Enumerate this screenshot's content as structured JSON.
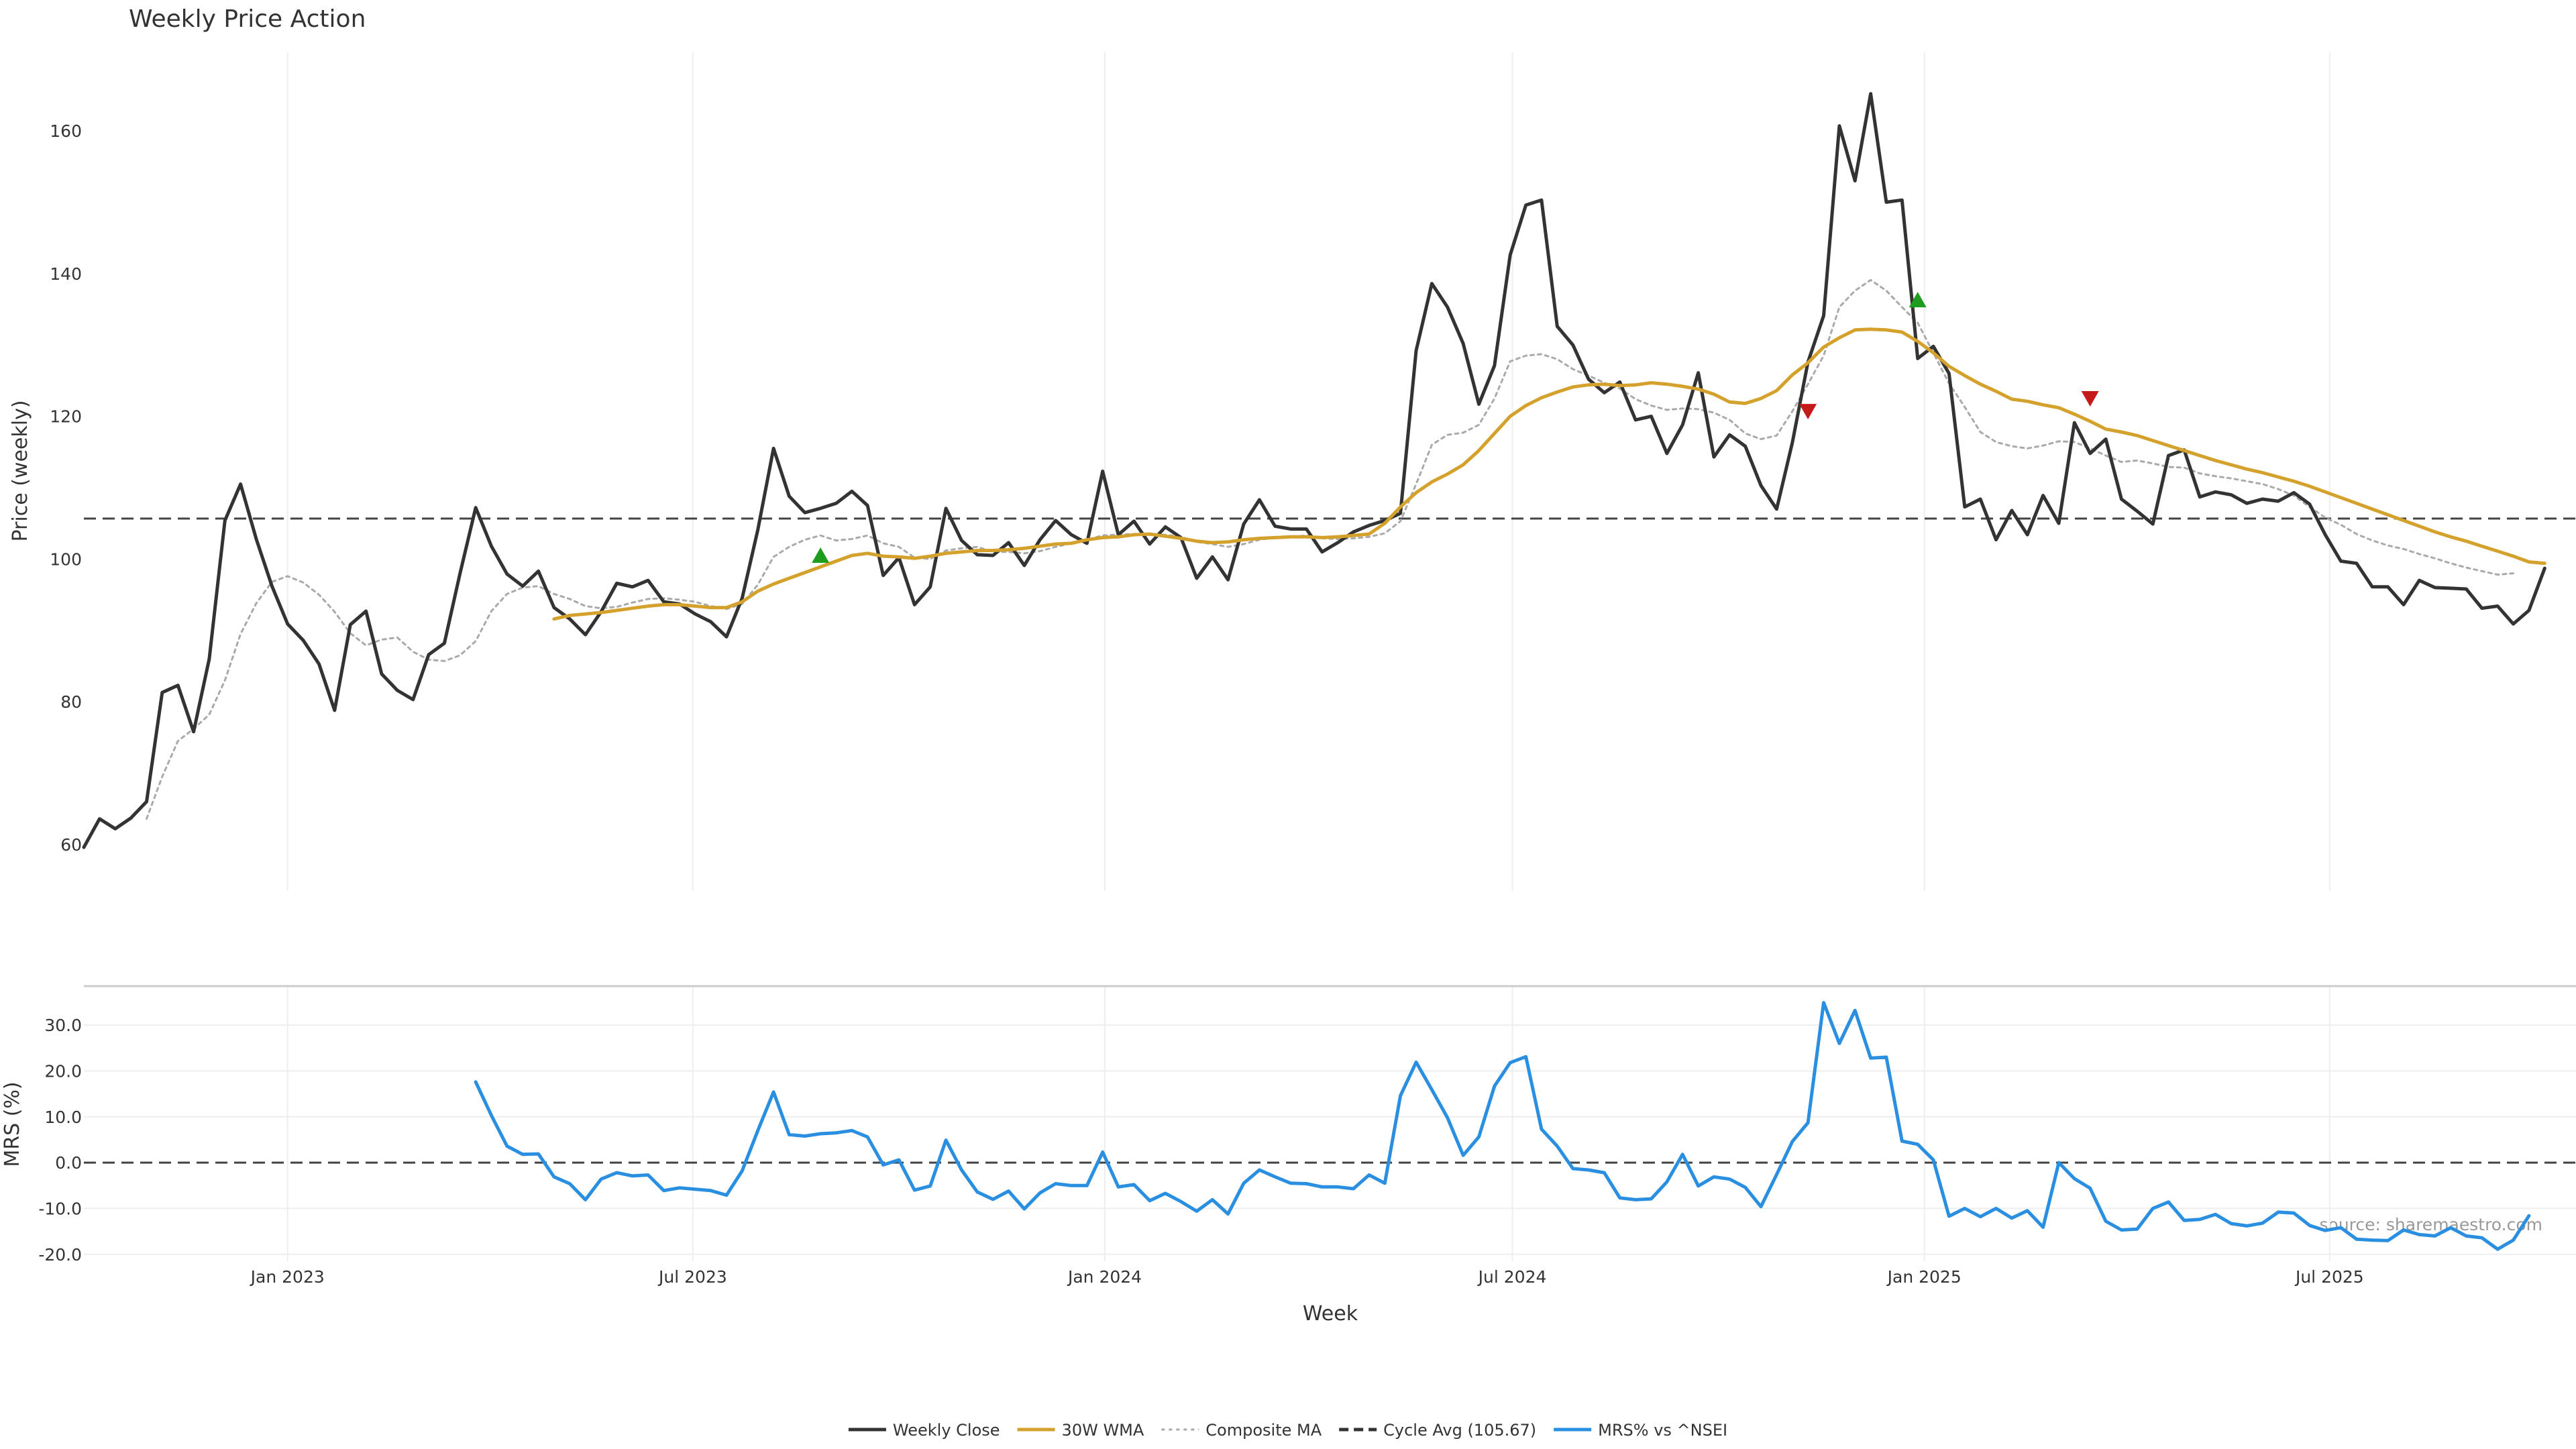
{
  "chart_data": {
    "type": "line",
    "title": "Weekly Price Action",
    "source": "source: sharemaestro.com",
    "x_tick_labels": [
      "Jan 2023",
      "Jul 2023",
      "Jan 2024",
      "Jul 2024",
      "Jan 2025",
      "Jul 2025"
    ],
    "x_tick_dates": [
      "2023-01-01",
      "2023-07-01",
      "2024-01-01",
      "2024-07-01",
      "2025-01-01",
      "2025-07-01"
    ],
    "xlabel": "Week",
    "xlim": [
      "2022-10-02",
      "2025-10-19"
    ],
    "dates": [
      "2022-10-02",
      "2022-10-09",
      "2022-10-16",
      "2022-10-23",
      "2022-10-30",
      "2022-11-06",
      "2022-11-13",
      "2022-11-20",
      "2022-11-27",
      "2022-12-04",
      "2022-12-11",
      "2022-12-18",
      "2022-12-25",
      "2023-01-01",
      "2023-01-08",
      "2023-01-15",
      "2023-01-22",
      "2023-01-29",
      "2023-02-05",
      "2023-02-12",
      "2023-02-19",
      "2023-02-26",
      "2023-03-05",
      "2023-03-12",
      "2023-03-19",
      "2023-03-26",
      "2023-04-02",
      "2023-04-09",
      "2023-04-16",
      "2023-04-23",
      "2023-04-30",
      "2023-05-07",
      "2023-05-14",
      "2023-05-21",
      "2023-05-28",
      "2023-06-04",
      "2023-06-11",
      "2023-06-18",
      "2023-06-25",
      "2023-07-02",
      "2023-07-09",
      "2023-07-16",
      "2023-07-23",
      "2023-07-30",
      "2023-08-06",
      "2023-08-13",
      "2023-08-20",
      "2023-08-27",
      "2023-09-03",
      "2023-09-10",
      "2023-09-17",
      "2023-09-24",
      "2023-10-01",
      "2023-10-08",
      "2023-10-15",
      "2023-10-22",
      "2023-10-29",
      "2023-11-05",
      "2023-11-12",
      "2023-11-19",
      "2023-11-26",
      "2023-12-03",
      "2023-12-10",
      "2023-12-17",
      "2023-12-24",
      "2023-12-31",
      "2024-01-07",
      "2024-01-14",
      "2024-01-21",
      "2024-01-28",
      "2024-02-04",
      "2024-02-11",
      "2024-02-18",
      "2024-02-25",
      "2024-03-03",
      "2024-03-10",
      "2024-03-17",
      "2024-03-24",
      "2024-03-31",
      "2024-04-07",
      "2024-04-14",
      "2024-04-21",
      "2024-04-28",
      "2024-05-05",
      "2024-05-12",
      "2024-05-19",
      "2024-05-26",
      "2024-06-02",
      "2024-06-09",
      "2024-06-16",
      "2024-06-23",
      "2024-06-30",
      "2024-07-07",
      "2024-07-14",
      "2024-07-21",
      "2024-07-28",
      "2024-08-04",
      "2024-08-11",
      "2024-08-18",
      "2024-08-25",
      "2024-09-01",
      "2024-09-08",
      "2024-09-15",
      "2024-09-22",
      "2024-09-29",
      "2024-10-06",
      "2024-10-13",
      "2024-10-20",
      "2024-10-27",
      "2024-11-03",
      "2024-11-10",
      "2024-11-17",
      "2024-11-24",
      "2024-12-01",
      "2024-12-08",
      "2024-12-15",
      "2024-12-22",
      "2024-12-29",
      "2025-01-05",
      "2025-01-12",
      "2025-01-19",
      "2025-01-26",
      "2025-02-02",
      "2025-02-09",
      "2025-02-16",
      "2025-02-23",
      "2025-03-02",
      "2025-03-09",
      "2025-03-16",
      "2025-03-23",
      "2025-03-30",
      "2025-04-06",
      "2025-04-13",
      "2025-04-20",
      "2025-04-27",
      "2025-05-04",
      "2025-05-11",
      "2025-05-18",
      "2025-05-25",
      "2025-06-01",
      "2025-06-08",
      "2025-06-15",
      "2025-06-22",
      "2025-06-29",
      "2025-07-06",
      "2025-07-13",
      "2025-07-20",
      "2025-07-27",
      "2025-08-03",
      "2025-08-10",
      "2025-08-17",
      "2025-08-24",
      "2025-08-31",
      "2025-09-07",
      "2025-09-14",
      "2025-09-21",
      "2025-09-28",
      "2025-10-05",
      "2025-10-12",
      "2025-10-19"
    ],
    "price_panel": {
      "ylabel": "Price (weekly)",
      "ylim": [
        53.5,
        171
      ],
      "yticks": [
        60,
        80,
        100,
        120,
        140,
        160
      ],
      "cycle_avg": 105.67,
      "series": [
        {
          "key": "close",
          "legend": "Weekly Close",
          "color": "#333333",
          "style": "solid",
          "values": [
            59.6,
            63.6,
            62.2,
            63.7,
            66.0,
            81.3,
            82.3,
            75.8,
            86.0,
            105.4,
            110.5,
            102.8,
            96.2,
            90.9,
            88.6,
            85.3,
            78.8,
            90.8,
            92.7,
            83.9,
            81.6,
            80.3,
            86.6,
            88.2,
            98.0,
            107.2,
            101.8,
            97.9,
            96.2,
            98.3,
            93.2,
            91.6,
            89.4,
            92.6,
            96.6,
            96.1,
            97.0,
            94.0,
            93.7,
            92.3,
            91.2,
            89.1,
            94.5,
            104.1,
            115.5,
            108.8,
            106.5,
            107.1,
            107.8,
            109.5,
            107.5,
            97.7,
            100.2,
            93.6,
            96.1,
            107.1,
            102.6,
            100.6,
            100.5,
            102.3,
            99.1,
            102.7,
            105.4,
            103.4,
            102.2,
            112.3,
            103.4,
            105.3,
            102.1,
            104.5,
            103.0,
            97.3,
            100.3,
            97.1,
            104.9,
            108.3,
            104.6,
            104.2,
            104.2,
            101.0,
            102.3,
            103.8,
            104.7,
            105.4,
            106.4,
            129.2,
            138.6,
            135.3,
            130.2,
            121.7,
            127.1,
            142.6,
            149.6,
            150.3,
            132.6,
            130.0,
            125.2,
            123.3,
            124.8,
            119.5,
            120.0,
            114.8,
            118.8,
            126.1,
            114.3,
            117.4,
            115.8,
            110.3,
            107.0,
            116.3,
            127.6,
            134.1,
            160.7,
            153.0,
            165.2,
            150.0,
            150.3,
            128.1,
            129.8,
            126.0,
            107.3,
            108.4,
            102.7,
            106.8,
            103.4,
            108.9,
            105.0,
            119.1,
            114.8,
            116.8,
            108.4,
            106.7,
            104.9,
            114.5,
            115.3,
            108.7,
            109.4,
            109.0,
            107.8,
            108.4,
            108.1,
            109.3,
            107.7,
            103.4,
            99.7,
            99.4,
            96.1,
            96.1,
            93.6,
            97.0,
            96.0,
            95.9,
            95.8,
            93.1,
            93.4,
            90.9,
            92.8,
            98.7
          ]
        },
        {
          "key": "wma30",
          "legend": "30W WMA",
          "color": "#d4a22c",
          "style": "solid",
          "values": [
            null,
            null,
            null,
            null,
            null,
            null,
            null,
            null,
            null,
            null,
            null,
            null,
            null,
            null,
            null,
            null,
            null,
            null,
            null,
            null,
            null,
            null,
            null,
            null,
            null,
            null,
            null,
            null,
            null,
            null,
            91.6,
            92.1,
            92.3,
            92.5,
            92.8,
            93.1,
            93.4,
            93.6,
            93.6,
            93.4,
            93.2,
            93.2,
            94.0,
            95.5,
            96.5,
            97.3,
            98.1,
            98.9,
            99.7,
            100.5,
            100.8,
            100.4,
            100.3,
            100.1,
            100.4,
            100.8,
            101.0,
            101.2,
            101.2,
            101.3,
            101.5,
            101.8,
            102.1,
            102.2,
            102.7,
            103.0,
            103.1,
            103.4,
            103.5,
            103.2,
            102.9,
            102.5,
            102.3,
            102.4,
            102.7,
            102.9,
            103.0,
            103.1,
            103.1,
            103.0,
            103.1,
            103.3,
            103.5,
            105.0,
            107.3,
            109.3,
            110.8,
            111.9,
            113.2,
            115.2,
            117.6,
            120.0,
            121.5,
            122.6,
            123.4,
            124.1,
            124.4,
            124.5,
            124.3,
            124.4,
            124.7,
            124.5,
            124.2,
            123.8,
            123.1,
            122.0,
            121.8,
            122.5,
            123.6,
            125.8,
            127.5,
            129.7,
            131.0,
            132.1,
            132.2,
            132.1,
            131.8,
            130.5,
            128.9,
            127.0,
            125.7,
            124.5,
            123.5,
            122.4,
            122.1,
            121.6,
            121.2,
            120.3,
            119.3,
            118.2,
            117.8,
            117.3,
            116.6,
            115.9,
            115.2,
            114.5,
            113.8,
            113.2,
            112.6,
            112.1,
            111.5,
            110.9,
            110.2,
            109.4,
            108.6,
            107.8,
            107.0,
            106.2,
            105.4,
            104.6,
            103.8,
            103.1,
            102.5,
            101.8,
            101.1,
            100.4,
            99.6,
            99.4
          ]
        },
        {
          "key": "composite",
          "legend": "Composite MA",
          "color": "#aaaaaa",
          "style": "dotted",
          "values": [
            null,
            null,
            null,
            null,
            63.6,
            69.5,
            74.5,
            76.2,
            78.2,
            83.0,
            89.5,
            93.8,
            96.8,
            97.6,
            96.7,
            95.0,
            92.6,
            89.6,
            87.9,
            88.7,
            89.0,
            87.0,
            85.9,
            85.7,
            86.5,
            88.5,
            92.7,
            95.1,
            96.0,
            96.2,
            95.1,
            94.4,
            93.4,
            93.1,
            93.3,
            93.9,
            94.4,
            94.5,
            94.3,
            94.0,
            93.4,
            93.0,
            93.7,
            96.4,
            100.3,
            101.7,
            102.7,
            103.3,
            102.6,
            102.8,
            103.3,
            102.2,
            101.7,
            100.2,
            100.0,
            101.2,
            101.5,
            101.7,
            101.0,
            101.0,
            100.8,
            101.1,
            101.7,
            102.2,
            102.7,
            103.3,
            103.4,
            103.5,
            103.4,
            103.4,
            103.1,
            102.4,
            102.1,
            101.7,
            102.1,
            102.7,
            103.0,
            103.1,
            103.3,
            102.9,
            102.8,
            102.9,
            103.1,
            103.6,
            105.3,
            110.5,
            116.0,
            117.4,
            117.7,
            118.8,
            122.5,
            127.7,
            128.5,
            128.7,
            128.0,
            126.6,
            125.7,
            124.7,
            123.9,
            122.4,
            121.5,
            120.9,
            121.1,
            121.0,
            120.5,
            119.5,
            117.6,
            116.8,
            117.3,
            120.7,
            124.5,
            128.5,
            135.3,
            137.6,
            139.1,
            137.6,
            135.3,
            133.1,
            128.9,
            124.6,
            121.3,
            117.8,
            116.4,
            115.8,
            115.5,
            115.9,
            116.5,
            116.4,
            115.5,
            114.5,
            113.6,
            113.8,
            113.4,
            112.9,
            112.8,
            112.0,
            111.6,
            111.3,
            110.9,
            110.5,
            109.8,
            108.9,
            107.3,
            105.8,
            104.8,
            103.5,
            102.6,
            101.9,
            101.4,
            100.7,
            100.1,
            99.4,
            98.8,
            98.3,
            97.8,
            98.0
          ]
        }
      ],
      "markers": [
        {
          "date": "2023-08-27",
          "value": 100.5,
          "type": "up",
          "color": "#1e9c1e"
        },
        {
          "date": "2024-11-10",
          "value": 120.7,
          "type": "down",
          "color": "#c41a1a"
        },
        {
          "date": "2024-12-29",
          "value": 136.3,
          "type": "up",
          "color": "#1e9c1e"
        },
        {
          "date": "2025-03-16",
          "value": 122.5,
          "type": "down",
          "color": "#c41a1a"
        }
      ]
    },
    "mrs_panel": {
      "ylabel": "MRS (%)",
      "ylim": [
        -21.5,
        38.5
      ],
      "yticks": [
        30,
        20,
        10,
        0,
        -10,
        -20
      ],
      "ytick_labels": [
        "30.0",
        "20.0",
        "10.0",
        "0.0",
        "-10.0",
        "-20.0"
      ],
      "zero_line": true,
      "series": [
        {
          "key": "mrs",
          "legend": "MRS% vs ^NSEI",
          "color": "#2a8fe0",
          "style": "solid",
          "values": [
            null,
            null,
            null,
            null,
            null,
            null,
            null,
            null,
            null,
            null,
            null,
            null,
            null,
            null,
            null,
            null,
            null,
            null,
            null,
            null,
            null,
            null,
            null,
            null,
            null,
            17.6,
            10.3,
            3.6,
            1.8,
            1.9,
            -3.1,
            -4.6,
            -8.1,
            -3.6,
            -2.2,
            -2.9,
            -2.7,
            -6.1,
            -5.5,
            -5.8,
            -6.1,
            -7.1,
            -1.8,
            7.0,
            15.4,
            6.1,
            5.8,
            6.3,
            6.5,
            7.0,
            5.6,
            -0.5,
            0.6,
            -6.0,
            -5.1,
            4.9,
            -1.6,
            -6.4,
            -8.0,
            -6.2,
            -10.1,
            -6.6,
            -4.6,
            -5.0,
            -5.0,
            2.3,
            -5.3,
            -4.8,
            -8.3,
            -6.7,
            -8.5,
            -10.6,
            -8.1,
            -11.2,
            -4.5,
            -1.6,
            -3.1,
            -4.5,
            -4.6,
            -5.3,
            -5.3,
            -5.7,
            -2.7,
            -4.5,
            14.6,
            21.9,
            15.9,
            9.8,
            1.6,
            5.6,
            16.7,
            21.8,
            23.1,
            7.3,
            3.6,
            -1.3,
            -1.6,
            -2.2,
            -7.7,
            -8.1,
            -7.9,
            -4.2,
            1.8,
            -5.1,
            -3.1,
            -3.6,
            -5.4,
            -9.6,
            -2.6,
            4.6,
            8.7,
            34.9,
            26.0,
            33.2,
            22.8,
            23.0,
            4.7,
            4.0,
            0.6,
            -11.7,
            -10.0,
            -11.8,
            -10.0,
            -12.1,
            -10.5,
            -14.1,
            0.0,
            -3.5,
            -5.6,
            -12.8,
            -14.7,
            -14.5,
            -10.0,
            -8.6,
            -12.6,
            -12.4,
            -11.3,
            -13.3,
            -13.8,
            -13.2,
            -10.8,
            -11.0,
            -13.7,
            -14.8,
            -14.2,
            -16.7,
            -16.9,
            -17.0,
            -14.7,
            -15.7,
            -16.0,
            -14.2,
            -16.0,
            -16.4,
            -18.9,
            -16.9,
            -11.6
          ]
        }
      ]
    },
    "legend": [
      {
        "label": "Weekly Close",
        "color": "#333333",
        "style": "solid"
      },
      {
        "label": "30W WMA",
        "color": "#d4a22c",
        "style": "solid"
      },
      {
        "label": "Composite MA",
        "color": "#aaaaaa",
        "style": "dotted"
      },
      {
        "label": "Cycle Avg (105.67)",
        "color": "#333333",
        "style": "dashed"
      },
      {
        "label": "MRS% vs ^NSEI",
        "color": "#2a8fe0",
        "style": "solid"
      }
    ],
    "legend_position": "bottom-center",
    "grid": "vertical-and-horizontal-light"
  }
}
